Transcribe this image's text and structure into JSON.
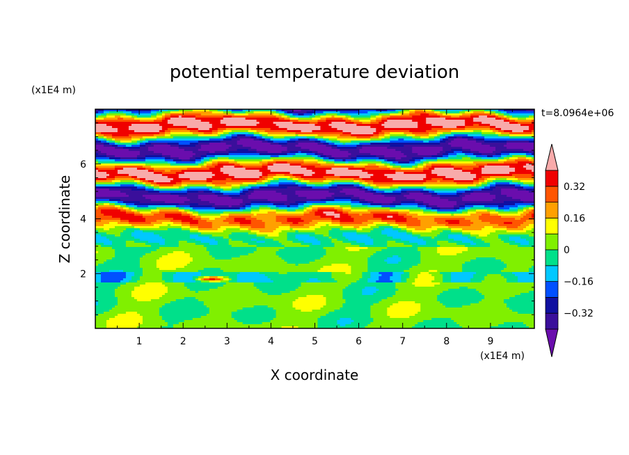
{
  "chart_data": {
    "type": "heatmap",
    "title": "potential temperature deviation",
    "xlabel": "X coordinate",
    "ylabel": "Z coordinate",
    "x_unit": "(x1E4 m)",
    "y_unit": "(x1E4 m)",
    "time_label": "t=8.0964e+06",
    "xlim": [
      0,
      10
    ],
    "ylim": [
      0,
      8
    ],
    "x_ticks": [
      1,
      2,
      3,
      4,
      5,
      6,
      7,
      8,
      9
    ],
    "y_ticks": [
      2,
      4,
      6
    ],
    "colorbar": {
      "levels": [
        -0.4,
        -0.32,
        -0.24,
        -0.16,
        -0.08,
        0,
        0.08,
        0.16,
        0.24,
        0.32,
        0.4
      ],
      "tick_labels": [
        "0.32",
        "0.16",
        "0",
        "−0.16",
        "−0.32"
      ],
      "tick_values": [
        0.32,
        0.16,
        0,
        -0.16,
        -0.32
      ],
      "colors": [
        "#6a0dad",
        "#3a0f9b",
        "#1010a0",
        "#0050ff",
        "#00c8ff",
        "#00e08a",
        "#80f000",
        "#ffff00",
        "#ffa000",
        "#ff5500",
        "#f00000",
        "#f8aaaa"
      ],
      "extend": "both"
    }
  }
}
